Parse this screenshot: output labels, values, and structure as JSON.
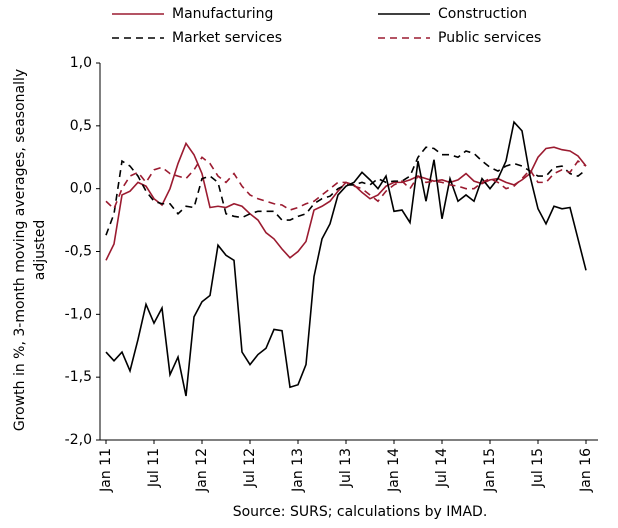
{
  "chart_data": {
    "type": "line",
    "ylabel": [
      "Growth in %, 3-month moving averages, seasonally",
      "adjusted"
    ],
    "source": "Source: SURS; calculations by IMAD.",
    "legend": "top",
    "categories": [
      "Jan 11",
      null,
      null,
      null,
      null,
      null,
      "Jul 11",
      null,
      null,
      null,
      null,
      null,
      "Jan 12",
      null,
      null,
      null,
      null,
      null,
      "Jul 12",
      null,
      null,
      null,
      null,
      null,
      "Jan 13",
      null,
      null,
      null,
      null,
      null,
      "Jul 13",
      null,
      null,
      null,
      null,
      null,
      "Jan 14",
      null,
      null,
      null,
      null,
      null,
      "Jul 14",
      null,
      null,
      null,
      null,
      null,
      "Jan 15",
      null,
      null,
      null,
      null,
      null,
      "Jul 15",
      null,
      null,
      null,
      null,
      null,
      "Jan 16"
    ],
    "ylim": [
      -2,
      1
    ],
    "yticks": [
      {
        "value": -2,
        "label": "-2,0"
      },
      {
        "value": -1.5,
        "label": "-1,5"
      },
      {
        "value": -1,
        "label": "-1,0"
      },
      {
        "value": -0.5,
        "label": "-0,5"
      },
      {
        "value": 0,
        "label": "0,0"
      },
      {
        "value": 0.5,
        "label": "0,5"
      },
      {
        "value": 1,
        "label": "1,0"
      }
    ],
    "series": [
      {
        "name": "Manufacturing",
        "color": "#9b1b30",
        "dashed": false,
        "values": [
          -0.57,
          -0.44,
          -0.05,
          -0.02,
          0.05,
          0.02,
          -0.08,
          -0.13,
          0.0,
          0.2,
          0.36,
          0.27,
          0.12,
          -0.15,
          -0.14,
          -0.15,
          -0.12,
          -0.14,
          -0.2,
          -0.25,
          -0.35,
          -0.4,
          -0.48,
          -0.55,
          -0.5,
          -0.42,
          -0.17,
          -0.14,
          -0.1,
          -0.02,
          0.05,
          0.03,
          -0.03,
          -0.08,
          -0.05,
          0.02,
          0.05,
          0.05,
          0.07,
          0.1,
          0.08,
          0.06,
          0.07,
          0.05,
          0.07,
          0.12,
          0.06,
          0.04,
          0.07,
          0.08,
          0.05,
          0.03,
          0.07,
          0.12,
          0.25,
          0.32,
          0.33,
          0.31,
          0.3,
          0.26,
          0.18
        ]
      },
      {
        "name": "Construction",
        "color": "#000000",
        "dashed": false,
        "values": [
          -1.3,
          -1.37,
          -1.3,
          -1.45,
          -1.2,
          -0.92,
          -1.07,
          -0.95,
          -1.48,
          -1.34,
          -1.65,
          -1.02,
          -0.9,
          -0.85,
          -0.45,
          -0.53,
          -0.57,
          -1.3,
          -1.4,
          -1.32,
          -1.27,
          -1.12,
          -1.13,
          -1.58,
          -1.56,
          -1.4,
          -0.7,
          -0.4,
          -0.28,
          -0.05,
          0.02,
          0.05,
          0.13,
          0.07,
          0.0,
          0.1,
          -0.18,
          -0.17,
          -0.27,
          0.22,
          -0.1,
          0.23,
          -0.24,
          0.08,
          -0.1,
          -0.05,
          -0.1,
          0.08,
          0.0,
          0.08,
          0.22,
          0.53,
          0.46,
          0.1,
          -0.16,
          -0.28,
          -0.14,
          -0.16,
          -0.15,
          -0.4,
          -0.65
        ]
      },
      {
        "name": "Market services",
        "color": "#000000",
        "dashed": true,
        "values": [
          -0.37,
          -0.2,
          0.22,
          0.18,
          0.1,
          -0.02,
          -0.1,
          -0.12,
          -0.12,
          -0.2,
          -0.14,
          -0.15,
          0.08,
          0.1,
          0.05,
          -0.2,
          -0.22,
          -0.23,
          -0.2,
          -0.18,
          -0.18,
          -0.18,
          -0.25,
          -0.25,
          -0.22,
          -0.2,
          -0.12,
          -0.08,
          -0.06,
          0.0,
          0.03,
          0.03,
          0.05,
          0.03,
          0.08,
          0.05,
          0.06,
          0.06,
          0.1,
          0.25,
          0.33,
          0.32,
          0.27,
          0.27,
          0.25,
          0.3,
          0.28,
          0.22,
          0.17,
          0.14,
          0.18,
          0.2,
          0.18,
          0.14,
          0.1,
          0.1,
          0.17,
          0.18,
          0.12,
          0.1,
          0.15
        ]
      },
      {
        "name": "Public services",
        "color": "#9b1b30",
        "dashed": true,
        "values": [
          -0.1,
          -0.16,
          0.0,
          0.1,
          0.13,
          0.05,
          0.15,
          0.17,
          0.12,
          0.1,
          0.08,
          0.15,
          0.25,
          0.2,
          0.1,
          0.05,
          0.12,
          0.02,
          -0.05,
          -0.08,
          -0.1,
          -0.12,
          -0.13,
          -0.17,
          -0.15,
          -0.12,
          -0.1,
          -0.05,
          0.0,
          0.05,
          0.05,
          0.02,
          0.0,
          -0.05,
          -0.1,
          -0.02,
          0.03,
          0.06,
          0.0,
          0.1,
          0.05,
          0.06,
          0.05,
          0.03,
          0.02,
          0.0,
          0.0,
          0.05,
          0.08,
          0.05,
          0.0,
          0.02,
          0.08,
          0.15,
          0.05,
          0.05,
          0.12,
          0.15,
          0.13,
          0.22,
          0.18
        ]
      }
    ]
  }
}
